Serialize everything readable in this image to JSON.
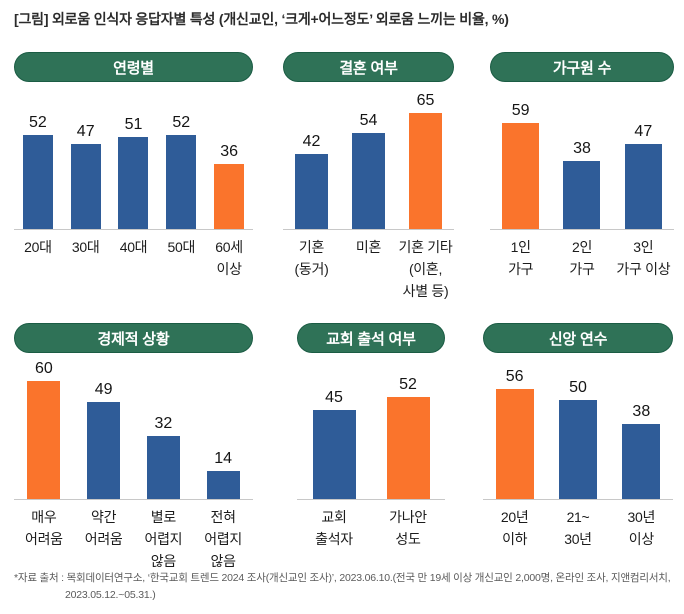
{
  "title": "[그림] 외로움 인식자 응답자별 특성 (개신교인, ‘크게+어느정도’ 외로움 느끼는 비율, %)",
  "footnote": {
    "line1": "*자료 출처 : 목회데이터연구소, ‘한국교회 트렌드 2024 조사(개신교인 조사)’, 2023.06.10.(전국 만 19세 이상 개신교인 2,000명, 온라인 조사, 지앤컴리서치,",
    "line2": "2023.05.12.~05.31.)"
  },
  "colors": {
    "bar": "#2F5C98",
    "bar_highlight": "#FA742C",
    "header_bg": "#2F7257",
    "header_border": "#1B5C44",
    "axis_line": "#C8C8C8"
  },
  "chart_data": [
    {
      "type": "bar",
      "title": "연령별",
      "categories": [
        "20대",
        "30대",
        "40대",
        "50대",
        "60세\n이상"
      ],
      "values": [
        52,
        47,
        51,
        52,
        36
      ],
      "highlight_index": 4,
      "ylim": [
        0,
        70
      ],
      "grid": false,
      "legend": "none"
    },
    {
      "type": "bar",
      "title": "결혼 여부",
      "categories": [
        "기혼\n(동거)",
        "미혼",
        "기혼 기타\n(이혼,\n사별 등)"
      ],
      "values": [
        42,
        54,
        65
      ],
      "highlight_index": 2,
      "ylim": [
        0,
        70
      ],
      "grid": false,
      "legend": "none"
    },
    {
      "type": "bar",
      "title": "가구원 수",
      "categories": [
        "1인\n가구",
        "2인\n가구",
        "3인\n가구 이상"
      ],
      "values": [
        59,
        38,
        47
      ],
      "highlight_index": 0,
      "ylim": [
        0,
        70
      ],
      "grid": false,
      "legend": "none"
    },
    {
      "type": "bar",
      "title": "경제적 상황",
      "categories": [
        "매우\n어려움",
        "약간\n어려움",
        "별로\n어렵지\n않음",
        "전혀\n어렵지\n않음"
      ],
      "values": [
        60,
        49,
        32,
        14
      ],
      "highlight_index": 0,
      "ylim": [
        0,
        70
      ],
      "grid": false,
      "legend": "none"
    },
    {
      "type": "bar",
      "title": "교회 출석 여부",
      "categories": [
        "교회\n출석자",
        "가나안\n성도"
      ],
      "values": [
        45,
        52
      ],
      "highlight_index": 1,
      "ylim": [
        0,
        70
      ],
      "grid": false,
      "legend": "none"
    },
    {
      "type": "bar",
      "title": "신앙 연수",
      "categories": [
        "20년\n이하",
        "21~\n30년",
        "30년\n이상"
      ],
      "values": [
        56,
        50,
        38
      ],
      "highlight_index": 0,
      "ylim": [
        0,
        70
      ],
      "grid": false,
      "legend": "none"
    }
  ]
}
